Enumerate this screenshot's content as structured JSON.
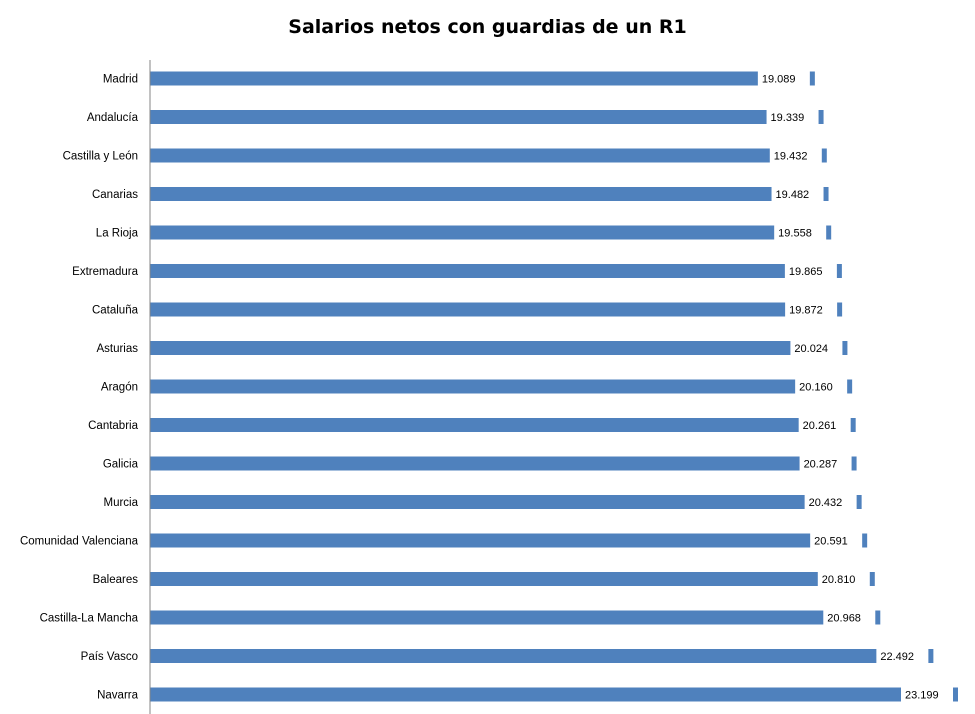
{
  "chart_data": {
    "type": "bar",
    "orientation": "horizontal",
    "title": "Salarios netos con guardias de un R1",
    "xlabel": "",
    "ylabel": "",
    "categories": [
      "Madrid",
      "Andalucía",
      "Castilla y León",
      "Canarias",
      "La Rioja",
      "Extremadura",
      "Cataluña",
      "Asturias",
      "Aragón",
      "Cantabria",
      "Galicia",
      "Murcia",
      "Comunidad Valenciana",
      "Baleares",
      "Castilla-La Mancha",
      "País Vasco",
      "Navarra"
    ],
    "values": [
      19089,
      19339,
      19432,
      19482,
      19558,
      19865,
      19872,
      20024,
      20160,
      20261,
      20287,
      20432,
      20591,
      20810,
      20968,
      22492,
      23199
    ],
    "value_labels": [
      "19.089",
      "19.339",
      "19.432",
      "19.482",
      "19.558",
      "19.865",
      "19.872",
      "20.024",
      "20.160",
      "20.261",
      "20.287",
      "20.432",
      "20.591",
      "20.810",
      "20.968",
      "22.492",
      "23.199"
    ],
    "xlim": [
      0,
      23400
    ],
    "grid": false,
    "legend": "none",
    "colors": {
      "bar": "#4f81bd",
      "axis": "#868686",
      "label_bg": "#ffffff"
    }
  }
}
